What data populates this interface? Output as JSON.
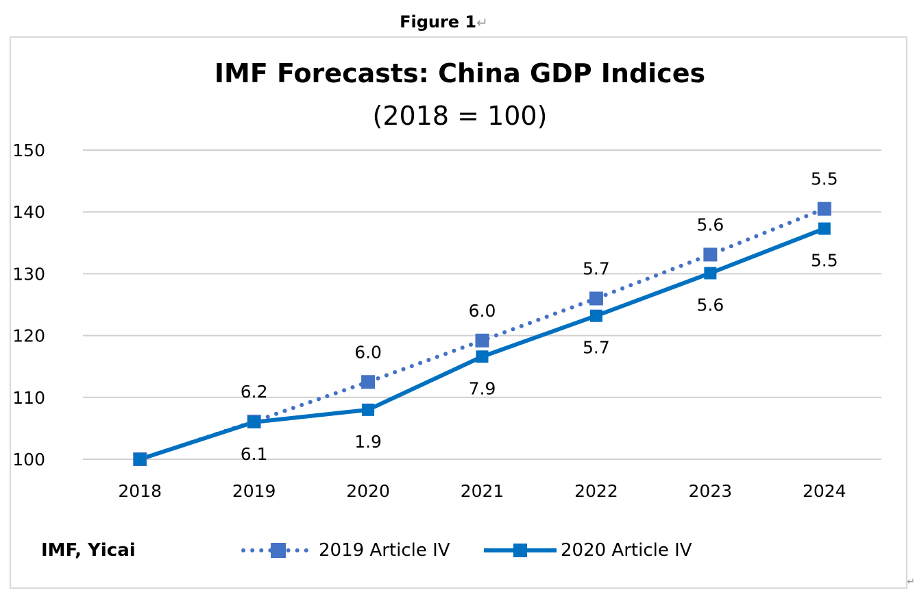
{
  "figure_label": "Figure 1",
  "chart_data": {
    "type": "line",
    "title": "IMF Forecasts: China GDP Indices",
    "subtitle": "(2018 = 100)",
    "xlabel": "",
    "ylabel": "",
    "categories": [
      "2018",
      "2019",
      "2020",
      "2021",
      "2022",
      "2023",
      "2024"
    ],
    "ylim": [
      100,
      150
    ],
    "yticks": [
      "100",
      "110",
      "120",
      "130",
      "140",
      "150"
    ],
    "grid": true,
    "legend_position": "bottom",
    "source": "IMF, Yicai",
    "series": [
      {
        "name": "2019 Article IV",
        "style": "dotted",
        "marker": "square",
        "color": "#4472c4",
        "values": [
          100,
          106.1,
          112.5,
          119.2,
          126.0,
          133.1,
          140.5
        ],
        "labels": [
          "",
          "6.2",
          "6.0",
          "6.0",
          "5.7",
          "5.6",
          "5.5"
        ],
        "label_position": "above"
      },
      {
        "name": "2020 Article IV",
        "style": "solid",
        "marker": "square",
        "color": "#0070c0",
        "values": [
          100,
          106.0,
          108.0,
          116.6,
          123.2,
          130.1,
          137.3
        ],
        "labels": [
          "",
          "6.1",
          "1.9",
          "7.9",
          "5.7",
          "5.6",
          "5.5"
        ],
        "label_position": "below"
      }
    ]
  }
}
